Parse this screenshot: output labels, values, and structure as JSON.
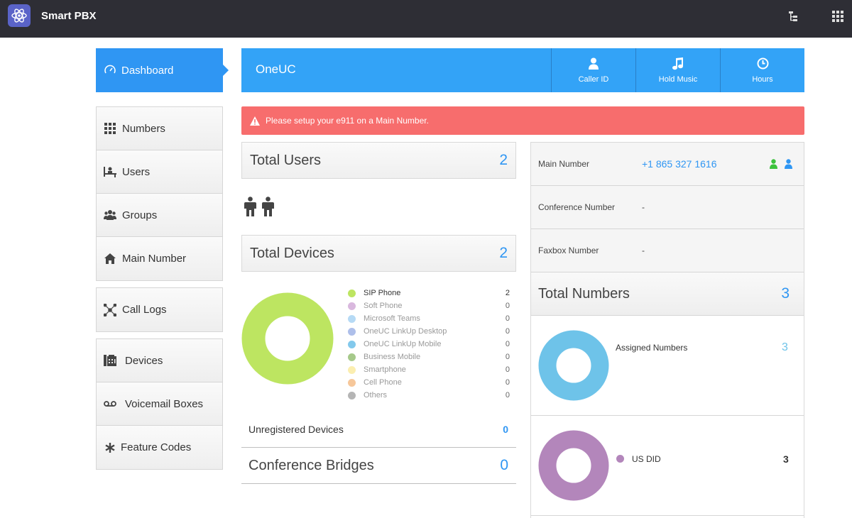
{
  "app": {
    "title": "Smart PBX"
  },
  "sidebar": {
    "active": {
      "label": "Dashboard",
      "icon": "speedometer-icon"
    },
    "groups": [
      [
        {
          "label": "Numbers",
          "icon": "grid-icon"
        },
        {
          "label": "Users",
          "icon": "user-desk-icon"
        },
        {
          "label": "Groups",
          "icon": "users-group-icon"
        },
        {
          "label": "Main Number",
          "icon": "home-icon"
        }
      ],
      [
        {
          "label": "Call Logs",
          "icon": "network-icon"
        }
      ],
      [
        {
          "label": "Devices",
          "icon": "fax-icon"
        },
        {
          "label": "Voicemail Boxes",
          "icon": "voicemail-icon"
        },
        {
          "label": "Feature Codes",
          "icon": "asterisk-icon"
        }
      ]
    ]
  },
  "header": {
    "title": "OneUC",
    "buttons": [
      {
        "label": "Caller ID",
        "icon": "user-icon"
      },
      {
        "label": "Hold Music",
        "icon": "music-note-icon"
      },
      {
        "label": "Hours",
        "icon": "clock-icon"
      }
    ]
  },
  "alert": {
    "text": "Please setup your e911 on a Main Number.",
    "color": "#f76d6d"
  },
  "users": {
    "label": "Total Users",
    "count": "2"
  },
  "devices": {
    "label": "Total Devices",
    "count": "2",
    "legend": [
      {
        "name": "SIP Phone",
        "value": "2",
        "color": "#bde561"
      },
      {
        "name": "Soft Phone",
        "value": "0",
        "color": "#d9b8de"
      },
      {
        "name": "Microsoft Teams",
        "value": "0",
        "color": "#b6daf5"
      },
      {
        "name": "OneUC LinkUp Desktop",
        "value": "0",
        "color": "#aebfea"
      },
      {
        "name": "OneUC LinkUp Mobile",
        "value": "0",
        "color": "#83c9ec"
      },
      {
        "name": "Business Mobile",
        "value": "0",
        "color": "#a6c98a"
      },
      {
        "name": "Smartphone",
        "value": "0",
        "color": "#fbeeb0"
      },
      {
        "name": "Cell Phone",
        "value": "0",
        "color": "#f6c79a"
      },
      {
        "name": "Others",
        "value": "0",
        "color": "#b5b5b5"
      }
    ],
    "unregistered_label": "Unregistered Devices",
    "unregistered_count": "0"
  },
  "conference": {
    "label": "Conference Bridges",
    "count": "0"
  },
  "numbers": {
    "main_label": "Main Number",
    "main_value": "+1 865 327 1616",
    "conference_label": "Conference Number",
    "conference_value": "-",
    "faxbox_label": "Faxbox Number",
    "faxbox_value": "-",
    "total_label": "Total Numbers",
    "total_count": "3",
    "assigned_label": "Assigned Numbers",
    "assigned_count": "3",
    "us_did_label": "US DID",
    "us_did_count": "3"
  },
  "colors": {
    "accent": "#2f96f3",
    "header": "#33a3f7",
    "topbar": "#2e2e35",
    "devices_donut": "#bde561",
    "assigned_donut": "#6ec3e9",
    "us_did_donut": "#b386bb",
    "main_icon_green": "#3cc23c",
    "main_icon_blue": "#2f96f3"
  }
}
